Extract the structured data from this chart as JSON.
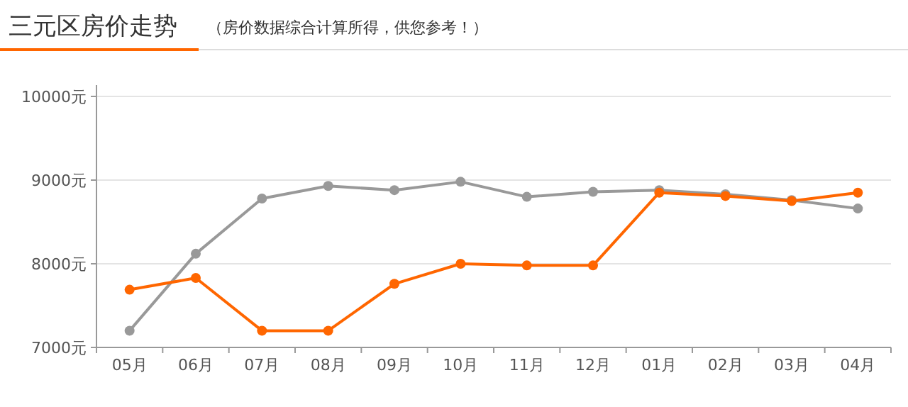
{
  "chart_data": {
    "type": "line",
    "title": "三元区房价走势",
    "subtitle": "（房价数据综合计算所得，供您参考！）",
    "categories": [
      "05月",
      "06月",
      "07月",
      "08月",
      "09月",
      "10月",
      "11月",
      "12月",
      "01月",
      "02月",
      "03月",
      "04月"
    ],
    "series": [
      {
        "color": "#999999",
        "values": [
          7200,
          8120,
          8780,
          8930,
          8880,
          8980,
          8800,
          8860,
          8880,
          8830,
          8760,
          8660
        ]
      },
      {
        "color": "#ff6600",
        "values": [
          7690,
          7830,
          7200,
          7200,
          7760,
          8000,
          7980,
          7980,
          8850,
          8810,
          8750,
          8850
        ]
      }
    ],
    "ylim": [
      7000,
      10000
    ],
    "yticks": [
      {
        "value": 7000,
        "label": "7000元"
      },
      {
        "value": 8000,
        "label": "8000元"
      },
      {
        "value": 9000,
        "label": "9000元"
      },
      {
        "value": 10000,
        "label": "10000元"
      }
    ],
    "grid": "y",
    "marker": "circle",
    "line_style": "solid"
  }
}
